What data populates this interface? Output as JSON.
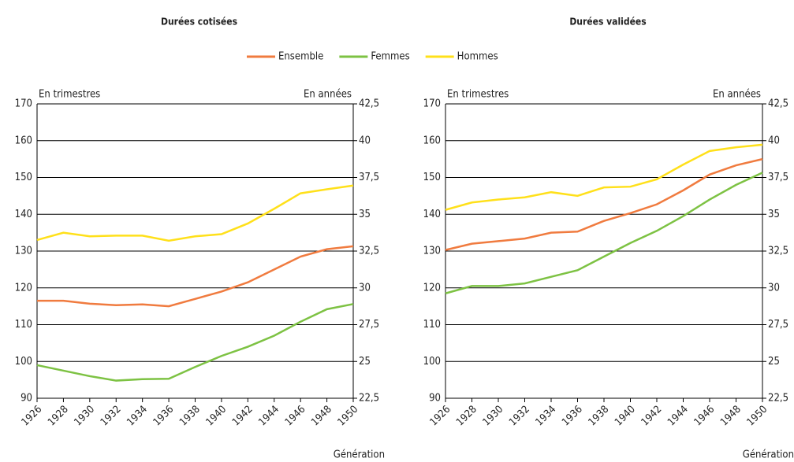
{
  "chart_data": [
    {
      "type": "line",
      "title": "Durées cotisées",
      "ylabel": "En trimestres",
      "y2label": "En années",
      "xlabel": "Génération",
      "x": [
        1926,
        1928,
        1930,
        1932,
        1934,
        1936,
        1938,
        1940,
        1942,
        1944,
        1946,
        1948,
        1950
      ],
      "xlim": [
        1926,
        1950
      ],
      "xticks": [
        1926,
        1928,
        1930,
        1932,
        1934,
        1936,
        1938,
        1940,
        1942,
        1944,
        1946,
        1948,
        1950
      ],
      "ylim": [
        90,
        170
      ],
      "yticks": [
        90,
        100,
        110,
        120,
        130,
        140,
        150,
        160,
        170
      ],
      "y2lim": [
        22.5,
        42.5
      ],
      "y2ticks": [
        {
          "value": 22.5,
          "label": "22,5"
        },
        25,
        {
          "value": 27.5,
          "label": "27,5"
        },
        30,
        {
          "value": 32.5,
          "label": "32,5"
        },
        35,
        {
          "value": 37.5,
          "label": "37,5"
        },
        40,
        {
          "value": 42.5,
          "label": "42,5"
        }
      ],
      "grid": true,
      "series": [
        {
          "name": "Ensemble",
          "color": "#f07b3f",
          "values": [
            116.5,
            116.5,
            115.7,
            115.3,
            115.5,
            115,
            117,
            119,
            121.5,
            125,
            128.5,
            130.5,
            131.3
          ]
        },
        {
          "name": "Femmes",
          "color": "#7dc243",
          "values": [
            99,
            97.5,
            96,
            94.8,
            95.2,
            95.3,
            98.5,
            101.5,
            104,
            107,
            110.8,
            114.2,
            115.6
          ]
        },
        {
          "name": "Hommes",
          "color": "#ffe01a",
          "values": [
            133,
            135,
            134,
            134.2,
            134.2,
            132.8,
            134,
            134.6,
            137.5,
            141.5,
            145.7,
            146.8,
            147.8
          ]
        }
      ]
    },
    {
      "type": "line",
      "title": "Durées validées",
      "ylabel": "En trimestres",
      "y2label": "En années",
      "xlabel": "Génération",
      "x": [
        1926,
        1928,
        1930,
        1932,
        1934,
        1936,
        1938,
        1940,
        1942,
        1944,
        1946,
        1948,
        1950
      ],
      "xlim": [
        1926,
        1950
      ],
      "xticks": [
        1926,
        1928,
        1930,
        1932,
        1934,
        1936,
        1938,
        1940,
        1942,
        1944,
        1946,
        1948,
        1950
      ],
      "ylim": [
        90,
        170
      ],
      "yticks": [
        90,
        100,
        110,
        120,
        130,
        140,
        150,
        160,
        170
      ],
      "y2lim": [
        22.5,
        42.5
      ],
      "y2ticks": [
        {
          "value": 22.5,
          "label": "22,5"
        },
        25,
        {
          "value": 27.5,
          "label": "27,5"
        },
        30,
        {
          "value": 32.5,
          "label": "32,5"
        },
        35,
        {
          "value": 37.5,
          "label": "37,5"
        },
        40,
        {
          "value": 42.5,
          "label": "42,5"
        }
      ],
      "grid": true,
      "series": [
        {
          "name": "Ensemble",
          "color": "#f07b3f",
          "values": [
            130.3,
            132,
            132.7,
            133.4,
            135,
            135.3,
            138.2,
            140.3,
            142.7,
            146.5,
            150.8,
            153.3,
            155
          ]
        },
        {
          "name": "Femmes",
          "color": "#7dc243",
          "values": [
            118.5,
            120.5,
            120.5,
            121.2,
            123,
            124.8,
            128.5,
            132.2,
            135.5,
            139.5,
            144,
            148,
            151.3
          ]
        },
        {
          "name": "Hommes",
          "color": "#ffe01a",
          "values": [
            141.2,
            143.2,
            144,
            144.6,
            146,
            145,
            147.3,
            147.5,
            149.5,
            153.5,
            157.2,
            158.2,
            158.9
          ]
        }
      ]
    }
  ]
}
